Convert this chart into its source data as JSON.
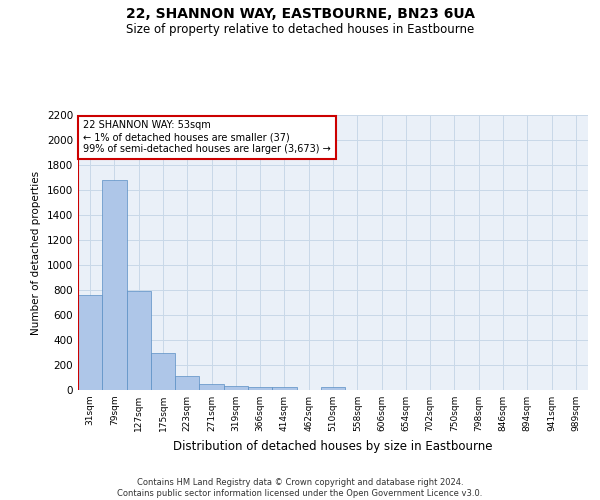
{
  "title": "22, SHANNON WAY, EASTBOURNE, BN23 6UA",
  "subtitle": "Size of property relative to detached houses in Eastbourne",
  "xlabel": "Distribution of detached houses by size in Eastbourne",
  "ylabel": "Number of detached properties",
  "categories": [
    "31sqm",
    "79sqm",
    "127sqm",
    "175sqm",
    "223sqm",
    "271sqm",
    "319sqm",
    "366sqm",
    "414sqm",
    "462sqm",
    "510sqm",
    "558sqm",
    "606sqm",
    "654sqm",
    "702sqm",
    "750sqm",
    "798sqm",
    "846sqm",
    "894sqm",
    "941sqm",
    "989sqm"
  ],
  "values": [
    760,
    1680,
    795,
    300,
    110,
    45,
    32,
    25,
    22,
    0,
    22,
    0,
    0,
    0,
    0,
    0,
    0,
    0,
    0,
    0,
    0
  ],
  "bar_color": "#aec6e8",
  "bar_edge_color": "#5a8fc4",
  "grid_color": "#c8d8e8",
  "background_color": "#eaf0f8",
  "annotation_line1": "22 SHANNON WAY: 53sqm",
  "annotation_line2": "← 1% of detached houses are smaller (37)",
  "annotation_line3": "99% of semi-detached houses are larger (3,673) →",
  "annotation_box_color": "#ffffff",
  "annotation_box_edge_color": "#cc0000",
  "vline_color": "#cc0000",
  "ylim": [
    0,
    2200
  ],
  "yticks": [
    0,
    200,
    400,
    600,
    800,
    1000,
    1200,
    1400,
    1600,
    1800,
    2000,
    2200
  ],
  "footer_line1": "Contains HM Land Registry data © Crown copyright and database right 2024.",
  "footer_line2": "Contains public sector information licensed under the Open Government Licence v3.0."
}
